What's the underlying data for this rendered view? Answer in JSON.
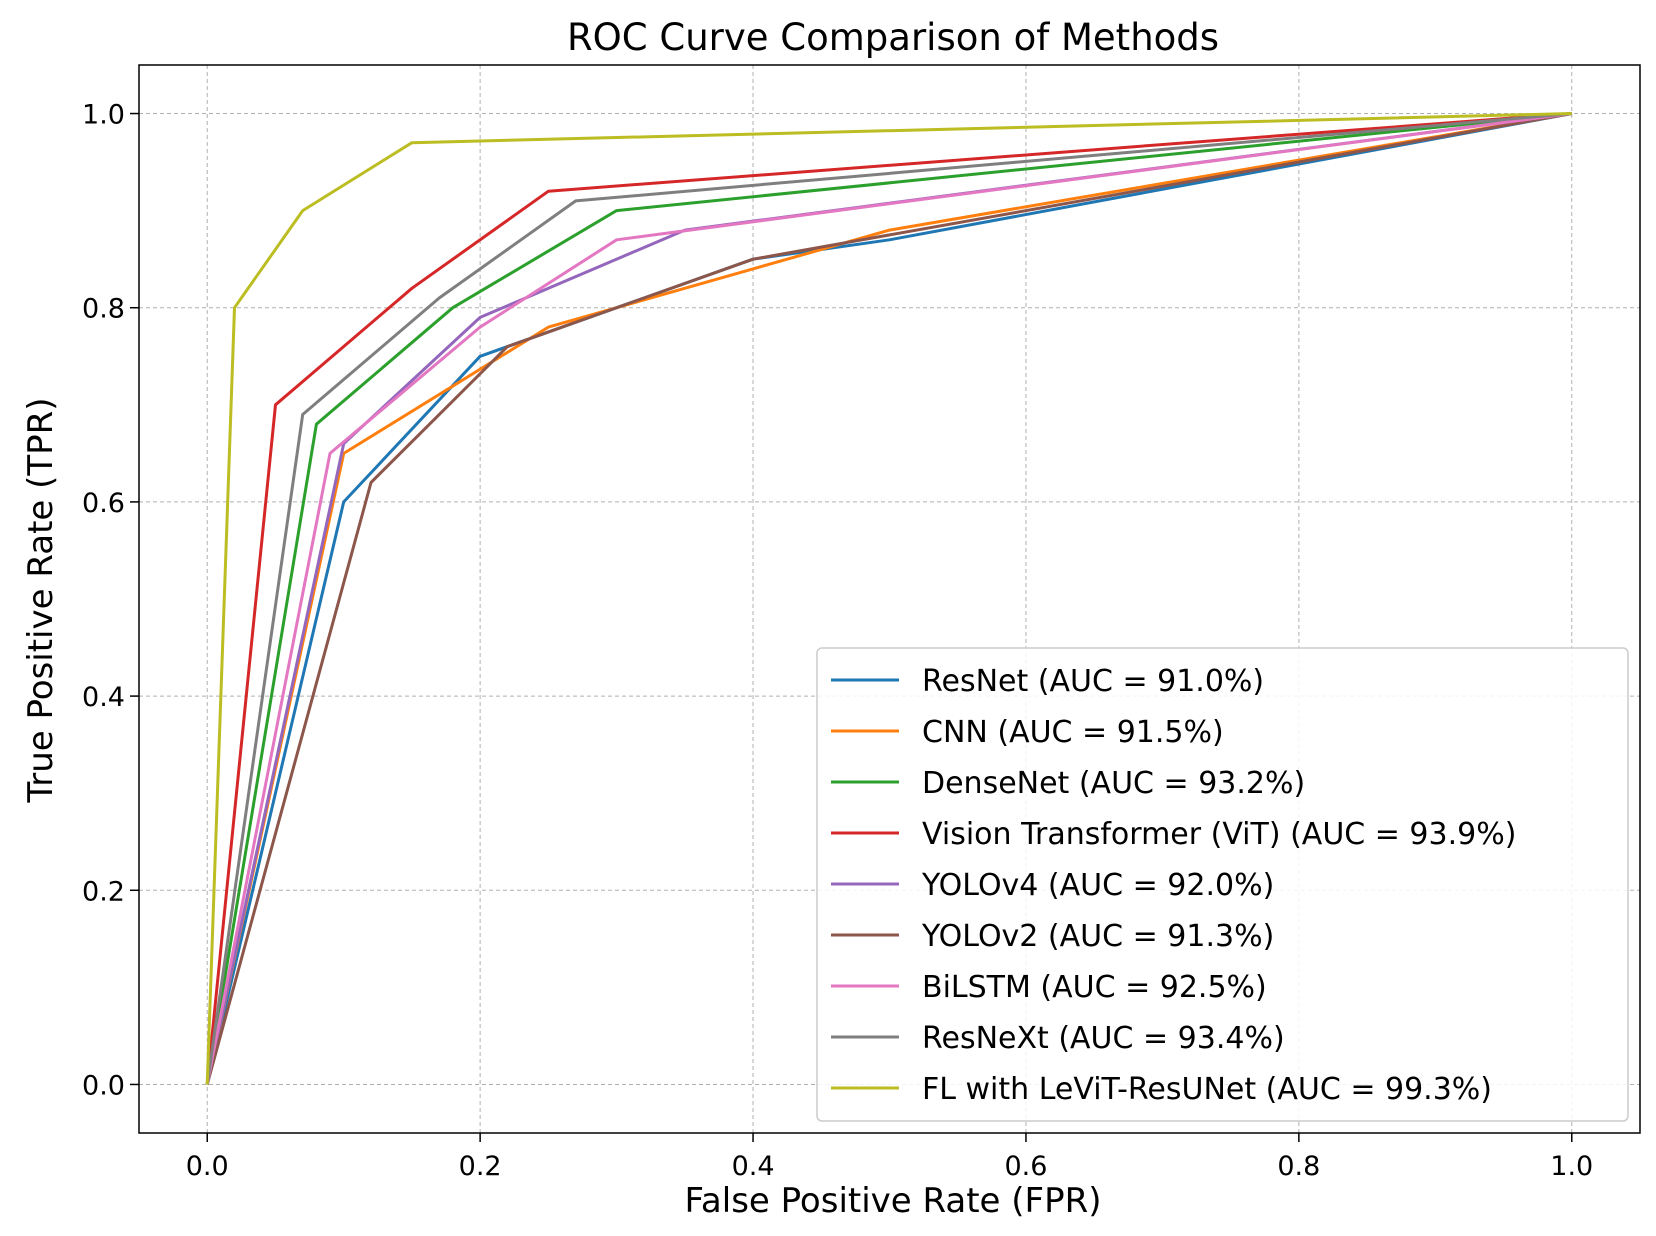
{
  "chart_data": {
    "type": "line",
    "title": "ROC Curve Comparison of Methods",
    "xlabel": "False Positive Rate (FPR)",
    "ylabel": "True Positive Rate (TPR)",
    "xlim": [
      -0.05,
      1.05
    ],
    "ylim": [
      -0.05,
      1.05
    ],
    "xticks": [
      0.0,
      0.2,
      0.4,
      0.6,
      0.8,
      1.0
    ],
    "yticks": [
      0.0,
      0.2,
      0.4,
      0.6,
      0.8,
      1.0
    ],
    "xtick_labels": [
      "0.0",
      "0.2",
      "0.4",
      "0.6",
      "0.8",
      "1.0"
    ],
    "ytick_labels": [
      "0.0",
      "0.2",
      "0.4",
      "0.6",
      "0.8",
      "1.0"
    ],
    "grid": true,
    "legend_position": "lower-right",
    "series": [
      {
        "name": "ResNet (AUC = 91.0%)",
        "color": "#1f77b4",
        "x": [
          0,
          0.1,
          0.2,
          0.3,
          0.4,
          0.5,
          1.0
        ],
        "y": [
          0,
          0.6,
          0.75,
          0.8,
          0.85,
          0.87,
          1.0
        ]
      },
      {
        "name": "CNN (AUC = 91.5%)",
        "color": "#ff7f0e",
        "x": [
          0,
          0.1,
          0.25,
          0.5,
          1.0
        ],
        "y": [
          0,
          0.65,
          0.78,
          0.88,
          1.0
        ]
      },
      {
        "name": "DenseNet (AUC = 93.2%)",
        "color": "#2ca02c",
        "x": [
          0,
          0.08,
          0.18,
          0.3,
          1.0
        ],
        "y": [
          0,
          0.68,
          0.8,
          0.9,
          1.0
        ]
      },
      {
        "name": "Vision Transformer (ViT) (AUC = 93.9%)",
        "color": "#d62728",
        "x": [
          0,
          0.05,
          0.15,
          0.25,
          1.0
        ],
        "y": [
          0,
          0.7,
          0.82,
          0.92,
          1.0
        ]
      },
      {
        "name": "YOLOv4 (AUC = 92.0%)",
        "color": "#9467bd",
        "x": [
          0,
          0.1,
          0.2,
          0.35,
          1.0
        ],
        "y": [
          0,
          0.66,
          0.79,
          0.88,
          1.0
        ]
      },
      {
        "name": "YOLOv2 (AUC = 91.3%)",
        "color": "#8c564b",
        "x": [
          0,
          0.12,
          0.22,
          0.4,
          1.0
        ],
        "y": [
          0,
          0.62,
          0.76,
          0.85,
          1.0
        ]
      },
      {
        "name": "BiLSTM (AUC = 92.5%)",
        "color": "#e377c2",
        "x": [
          0,
          0.09,
          0.2,
          0.3,
          1.0
        ],
        "y": [
          0,
          0.65,
          0.78,
          0.87,
          1.0
        ]
      },
      {
        "name": "ResNeXt (AUC = 93.4%)",
        "color": "#7f7f7f",
        "x": [
          0,
          0.07,
          0.17,
          0.27,
          1.0
        ],
        "y": [
          0,
          0.69,
          0.81,
          0.91,
          1.0
        ]
      },
      {
        "name": "FL with LeViT-ResUNet (AUC = 99.3%)",
        "color": "#bcbd22",
        "x": [
          0,
          0.02,
          0.07,
          0.15,
          1.0
        ],
        "y": [
          0,
          0.8,
          0.9,
          0.97,
          1.0
        ]
      }
    ]
  }
}
